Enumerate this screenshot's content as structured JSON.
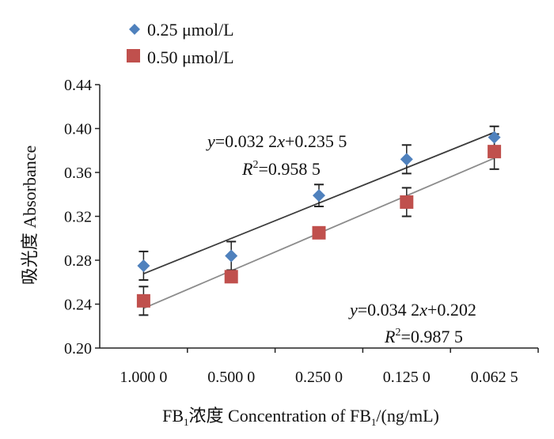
{
  "chart_data": {
    "type": "scatter",
    "title": "",
    "xlabel_parts": [
      "FB",
      "1",
      "浓度  Concentration of FB",
      "1",
      "/(ng/mL)"
    ],
    "ylabel": "吸光度  Absorbance",
    "categories": [
      "1.000 0",
      "0.500 0",
      "0.250 0",
      "0.125 0",
      "0.062 5"
    ],
    "ylim": [
      0.2,
      0.44
    ],
    "yticks": [
      "0.20",
      "0.24",
      "0.28",
      "0.32",
      "0.36",
      "0.40",
      "0.44"
    ],
    "grid": false,
    "legend_position": "top-left",
    "series": [
      {
        "name": "0.25 μmol/L",
        "marker": "diamond",
        "color": "#4f81bd",
        "line_color": "#3c3c3c",
        "values": [
          0.275,
          0.284,
          0.339,
          0.372,
          0.392
        ],
        "errors": [
          0.013,
          0.013,
          0.01,
          0.013,
          0.01
        ],
        "fit": {
          "slope": 0.0322,
          "intercept": 0.2355,
          "equation": [
            "y",
            "=0.032 2",
            "x",
            "+0.235 5"
          ],
          "r2": [
            "R",
            "2",
            "=0.958 5"
          ]
        }
      },
      {
        "name": "0.50 μmol/L",
        "marker": "square",
        "color": "#c0504d",
        "line_color": "#8c8c8c",
        "values": [
          0.243,
          0.265,
          0.305,
          0.333,
          0.379
        ],
        "errors": [
          0.013,
          0.0,
          0.0,
          0.013,
          0.016
        ],
        "fit": {
          "slope": 0.0342,
          "intercept": 0.202,
          "equation": [
            "y",
            "=0.034 2",
            "x",
            "+0.202"
          ],
          "r2": [
            "R",
            "2",
            "=0.987 5"
          ]
        }
      }
    ]
  }
}
